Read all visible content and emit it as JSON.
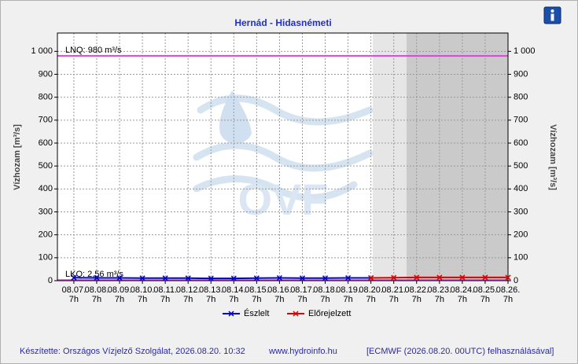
{
  "chart_data": {
    "type": "line",
    "title": "Hernád - Hidasnémeti",
    "ylabel": "Vízhozam [m³/s]",
    "y2label": "Vízhozam [m³/s]",
    "categories": [
      "08.07.",
      "08.08.",
      "08.09.",
      "08.10.",
      "08.11.",
      "08.12.",
      "08.13.",
      "08.14.",
      "08.15.",
      "08.16.",
      "08.17.",
      "08.18.",
      "08.19.",
      "08.20.",
      "08.21.",
      "08.22.",
      "08.23.",
      "08.24.",
      "08.25.",
      "08.26."
    ],
    "category_sublabels": [
      "7h",
      "7h",
      "7h",
      "7h",
      "7h",
      "7h",
      "7h",
      "7h",
      "7h",
      "7h",
      "7h",
      "7h",
      "7h",
      "7h",
      "7h",
      "7h",
      "7h",
      "7h",
      "7h",
      "7h"
    ],
    "series": [
      {
        "name": "Észlelt",
        "color": "#0000cc",
        "values": [
          13,
          12,
          12,
          11,
          11,
          11,
          10,
          10,
          11,
          12,
          11,
          11,
          12,
          12,
          null,
          null,
          null,
          null,
          null,
          null
        ]
      },
      {
        "name": "Előrejelzett",
        "color": "#dd0000",
        "values": [
          null,
          null,
          null,
          null,
          null,
          null,
          null,
          null,
          null,
          null,
          null,
          null,
          null,
          12,
          13,
          14,
          14,
          14,
          14,
          14
        ]
      }
    ],
    "ylim": [
      0,
      1080
    ],
    "yticks": [
      0,
      100,
      200,
      300,
      400,
      500,
      600,
      700,
      800,
      900,
      {
        "value": 1000,
        "label": "1 000"
      }
    ],
    "y2lim": [
      0,
      1080
    ],
    "y2ticks": [
      0,
      100,
      200,
      300,
      400,
      500,
      600,
      700,
      800,
      900,
      {
        "value": 1000,
        "label": "1 000"
      }
    ],
    "thresholds": [
      {
        "label": "LNQ: 980 m³/s",
        "value": 980,
        "color": "#e040e0"
      },
      {
        "label": "LKQ: 2,56 m³/s",
        "value": 2.56,
        "color": "#e040e0"
      }
    ],
    "grid": true,
    "watermark": "OVF",
    "footer": [
      "Készítette: Országos Vízjelző Szolgálat, 2026.08.20. 10:32",
      "www.hydroinfo.hu",
      "[ECMWF (2026.08.20. 00UTC) felhasználásával]"
    ]
  }
}
